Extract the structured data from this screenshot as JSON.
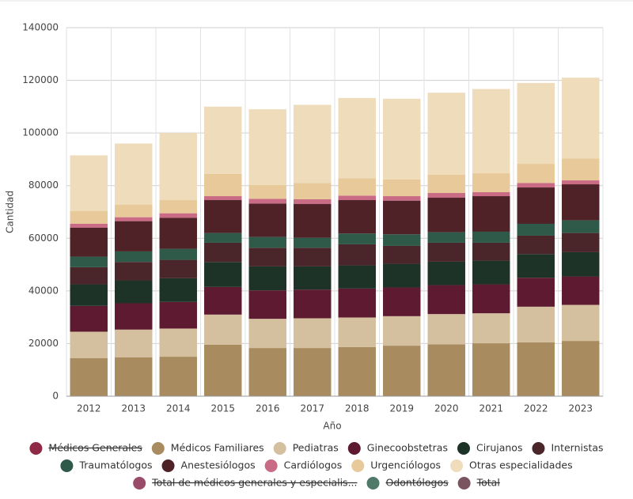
{
  "chart_data": {
    "type": "stacked-bar",
    "x_label": "Año",
    "y_label": "Cantidad",
    "categories": [
      "2012",
      "2013",
      "2014",
      "2015",
      "2016",
      "2017",
      "2018",
      "2019",
      "2020",
      "2021",
      "2022",
      "2023"
    ],
    "ylim": [
      0,
      140000
    ],
    "yticks": [
      0,
      20000,
      40000,
      60000,
      80000,
      100000,
      120000,
      140000
    ],
    "grid": true,
    "legend": "bottom",
    "series": [
      {
        "name": "Médicos Generales",
        "color": "#8e2a45",
        "hidden": true
      },
      {
        "name": "Médicos Familiares",
        "color": "#a88b5e",
        "values": [
          14500,
          14800,
          15000,
          19600,
          18300,
          18300,
          18700,
          19200,
          19700,
          20100,
          20500,
          21000
        ]
      },
      {
        "name": "Pediatras",
        "color": "#d4c09e",
        "values": [
          10000,
          10500,
          10700,
          11400,
          11100,
          11300,
          11200,
          11200,
          11500,
          11400,
          13500,
          13700
        ]
      },
      {
        "name": "Ginecoobstetras",
        "color": "#5e1a30",
        "values": [
          9800,
          10000,
          10100,
          10500,
          10800,
          10900,
          11000,
          10900,
          11000,
          11000,
          11000,
          10800
        ]
      },
      {
        "name": "Cirujanos",
        "color": "#1e3328",
        "values": [
          8200,
          8700,
          9000,
          9500,
          9100,
          8800,
          8800,
          9000,
          8900,
          9000,
          9000,
          9200
        ]
      },
      {
        "name": "Internistas",
        "color": "#4a2529",
        "values": [
          6500,
          7000,
          7000,
          7300,
          7100,
          7100,
          8000,
          6800,
          7200,
          6800,
          7000,
          7300
        ]
      },
      {
        "name": "Traumatólogos",
        "color": "#2f5a4a",
        "values": [
          4000,
          4000,
          4200,
          3700,
          4100,
          3800,
          4100,
          4400,
          4000,
          4200,
          4500,
          4800
        ]
      },
      {
        "name": "Anestesiólogos",
        "color": "#4e2226",
        "values": [
          11000,
          11500,
          11800,
          12500,
          12700,
          12800,
          12700,
          12800,
          13100,
          13500,
          13800,
          13700
        ]
      },
      {
        "name": "Cardiólogos",
        "color": "#c96b84",
        "values": [
          1500,
          1500,
          1700,
          1500,
          1800,
          1800,
          1700,
          1700,
          1800,
          1500,
          1700,
          1500
        ]
      },
      {
        "name": "Urgenciólogos",
        "color": "#e8c99a",
        "values": [
          4800,
          4800,
          5000,
          8500,
          5200,
          6200,
          6600,
          6400,
          7000,
          7200,
          7300,
          8300
        ]
      },
      {
        "name": "Otras especialidades",
        "color": "#eedcbb",
        "values": [
          21200,
          23200,
          25500,
          25500,
          28800,
          29700,
          30500,
          30600,
          31100,
          32000,
          30700,
          30700
        ]
      },
      {
        "name": "Total de médicos generales y especialis...",
        "color": "#9b4b6a",
        "hidden": true
      },
      {
        "name": "Odontólogos",
        "color": "#4f7a6a",
        "hidden": true
      },
      {
        "name": "Total",
        "color": "#7a5560",
        "hidden": true
      }
    ]
  }
}
